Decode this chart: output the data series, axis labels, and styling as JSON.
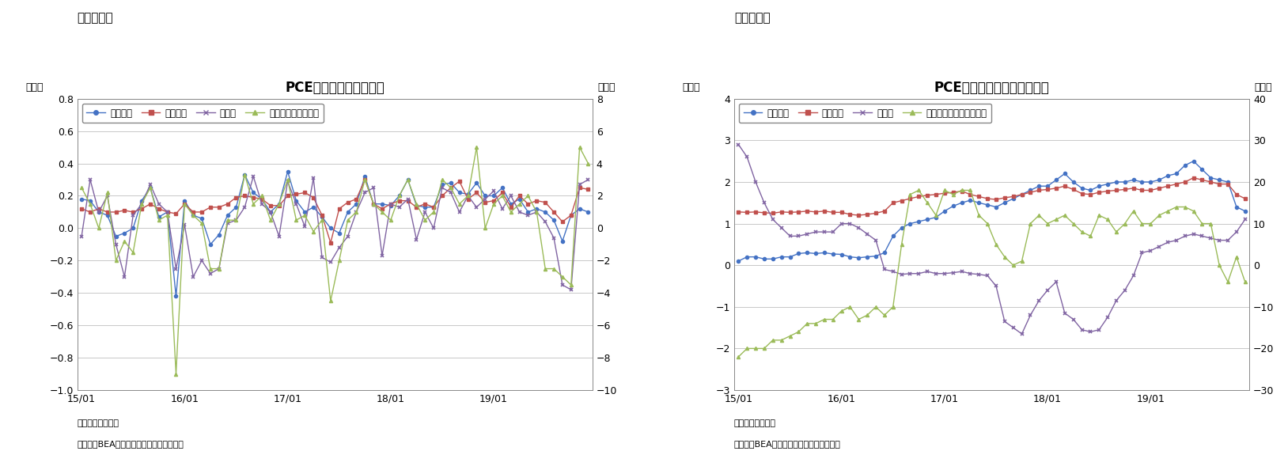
{
  "fig6": {
    "title": "PCE価格指数（前月比）",
    "suptitle": "（図表６）",
    "ylabel_left": "（％）",
    "ylabel_right": "（％）",
    "ylim_left": [
      -1.0,
      0.8
    ],
    "ylim_right": [
      -10,
      8
    ],
    "yticks_left": [
      -1.0,
      -0.8,
      -0.6,
      -0.4,
      -0.2,
      0.0,
      0.2,
      0.4,
      0.6,
      0.8
    ],
    "yticks_right": [
      -10,
      -8,
      -6,
      -4,
      -2,
      0,
      2,
      4,
      6,
      8
    ],
    "xtick_labels": [
      "15/01",
      "16/01",
      "17/01",
      "18/01",
      "19/01"
    ],
    "note1": "（注）季節調整済",
    "note2": "（資料）BEAよりニッセイ基礎研究所作成",
    "legend": [
      "総合指数",
      "コア指数",
      "食料品",
      "エネルギー（右軸）"
    ],
    "colors": [
      "#4472c4",
      "#c0504d",
      "#8064a2",
      "#9bbb59"
    ],
    "markers": [
      "o",
      "s",
      "x",
      "^"
    ],
    "total": [
      0.18,
      0.17,
      0.1,
      0.08,
      -0.05,
      -0.03,
      0.0,
      0.17,
      0.25,
      0.07,
      0.1,
      -0.42,
      0.17,
      0.08,
      0.06,
      -0.1,
      -0.04,
      0.08,
      0.13,
      0.33,
      0.22,
      0.18,
      0.1,
      0.15,
      0.35,
      0.17,
      0.1,
      0.13,
      0.07,
      0.0,
      -0.03,
      0.1,
      0.15,
      0.32,
      0.15,
      0.15,
      0.14,
      0.2,
      0.3,
      0.14,
      0.13,
      0.13,
      0.27,
      0.28,
      0.22,
      0.21,
      0.28,
      0.2,
      0.2,
      0.25,
      0.15,
      0.18,
      0.1,
      0.12,
      0.1,
      0.05,
      -0.08,
      0.08,
      0.12,
      0.1
    ],
    "core": [
      0.12,
      0.1,
      0.12,
      0.1,
      0.1,
      0.11,
      0.1,
      0.12,
      0.15,
      0.12,
      0.1,
      0.09,
      0.15,
      0.1,
      0.1,
      0.13,
      0.13,
      0.15,
      0.19,
      0.2,
      0.19,
      0.18,
      0.14,
      0.14,
      0.2,
      0.21,
      0.22,
      0.19,
      0.08,
      -0.09,
      0.12,
      0.16,
      0.18,
      0.3,
      0.15,
      0.12,
      0.15,
      0.17,
      0.17,
      0.13,
      0.15,
      0.13,
      0.2,
      0.25,
      0.29,
      0.18,
      0.22,
      0.16,
      0.17,
      0.22,
      0.13,
      0.2,
      0.15,
      0.17,
      0.16,
      0.1,
      0.04,
      0.08,
      0.25,
      0.24
    ],
    "food": [
      -0.05,
      0.3,
      0.1,
      0.2,
      -0.1,
      -0.3,
      0.08,
      0.15,
      0.27,
      0.15,
      0.1,
      -0.25,
      0.02,
      -0.3,
      -0.2,
      -0.28,
      -0.25,
      0.03,
      0.05,
      0.13,
      0.32,
      0.15,
      0.1,
      -0.05,
      0.29,
      0.15,
      0.01,
      0.31,
      -0.18,
      -0.21,
      -0.12,
      -0.05,
      0.1,
      0.22,
      0.25,
      -0.17,
      0.15,
      0.13,
      0.18,
      -0.07,
      0.1,
      0.0,
      0.25,
      0.22,
      0.1,
      0.2,
      0.13,
      0.18,
      0.23,
      0.12,
      0.2,
      0.1,
      0.08,
      0.1,
      0.04,
      -0.06,
      -0.35,
      -0.38,
      0.27,
      0.3
    ],
    "energy": [
      2.5,
      1.5,
      0.0,
      2.2,
      -2.0,
      -0.8,
      -1.5,
      1.5,
      2.5,
      0.5,
      0.8,
      -9.0,
      1.5,
      0.8,
      0.3,
      -2.5,
      -2.5,
      0.5,
      0.5,
      3.3,
      1.5,
      2.0,
      0.5,
      1.5,
      3.0,
      0.5,
      0.8,
      -0.2,
      0.5,
      -4.5,
      -2.0,
      0.5,
      1.0,
      3.0,
      1.5,
      1.0,
      0.5,
      2.0,
      3.0,
      1.5,
      0.5,
      1.0,
      3.0,
      2.5,
      1.5,
      2.0,
      5.0,
      0.0,
      1.5,
      2.0,
      1.0,
      1.5,
      2.0,
      1.0,
      -2.5,
      -2.5,
      -3.0,
      -3.5,
      5.0,
      4.0
    ]
  },
  "fig7": {
    "title": "PCE価格指数（前年同月比）",
    "suptitle": "（図表７）",
    "ylabel_left": "（％）",
    "ylabel_right": "（％）",
    "ylim_left": [
      -3.0,
      4.0
    ],
    "ylim_right": [
      -30,
      40
    ],
    "yticks_left": [
      -3,
      -2,
      -1,
      0,
      1,
      2,
      3,
      4
    ],
    "yticks_right": [
      -30,
      -20,
      -10,
      0,
      10,
      20,
      30,
      40
    ],
    "xtick_labels": [
      "15/01",
      "16/01",
      "17/01",
      "18/01",
      "19/01"
    ],
    "note1": "（注）季節調整済",
    "note2": "（資料）BEAよりニッセイ基礎研究所作成",
    "legend": [
      "総合指数",
      "コア指数",
      "食料品",
      "エネルギー関連（右軸）"
    ],
    "colors": [
      "#4472c4",
      "#c0504d",
      "#8064a2",
      "#9bbb59"
    ],
    "markers": [
      "o",
      "s",
      "x",
      "^"
    ],
    "total": [
      0.1,
      0.2,
      0.2,
      0.15,
      0.15,
      0.2,
      0.2,
      0.28,
      0.3,
      0.28,
      0.3,
      0.27,
      0.26,
      0.2,
      0.18,
      0.2,
      0.22,
      0.3,
      0.7,
      0.9,
      1.0,
      1.05,
      1.1,
      1.15,
      1.3,
      1.42,
      1.5,
      1.56,
      1.5,
      1.45,
      1.4,
      1.5,
      1.6,
      1.7,
      1.8,
      1.9,
      1.9,
      2.05,
      2.2,
      2.0,
      1.85,
      1.8,
      1.9,
      1.95,
      2.0,
      2.0,
      2.05,
      2.0,
      2.0,
      2.05,
      2.15,
      2.2,
      2.4,
      2.5,
      2.3,
      2.1,
      2.05,
      2.0,
      1.4,
      1.3
    ],
    "core": [
      1.28,
      1.27,
      1.28,
      1.26,
      1.25,
      1.28,
      1.27,
      1.28,
      1.3,
      1.28,
      1.3,
      1.27,
      1.27,
      1.22,
      1.2,
      1.22,
      1.25,
      1.3,
      1.5,
      1.55,
      1.6,
      1.65,
      1.68,
      1.7,
      1.73,
      1.75,
      1.78,
      1.7,
      1.65,
      1.6,
      1.58,
      1.62,
      1.65,
      1.7,
      1.75,
      1.8,
      1.82,
      1.85,
      1.9,
      1.82,
      1.72,
      1.7,
      1.75,
      1.78,
      1.8,
      1.82,
      1.85,
      1.8,
      1.8,
      1.85,
      1.9,
      1.95,
      2.0,
      2.1,
      2.05,
      2.0,
      1.95,
      1.95,
      1.7,
      1.6
    ],
    "food": [
      2.9,
      2.6,
      2.0,
      1.5,
      1.1,
      0.9,
      0.7,
      0.7,
      0.75,
      0.8,
      0.8,
      0.8,
      1.0,
      1.0,
      0.9,
      0.75,
      0.6,
      -0.1,
      -0.15,
      -0.22,
      -0.2,
      -0.2,
      -0.15,
      -0.2,
      -0.2,
      -0.18,
      -0.15,
      -0.2,
      -0.22,
      -0.25,
      -0.5,
      -1.35,
      -1.5,
      -1.65,
      -1.2,
      -0.85,
      -0.6,
      -0.4,
      -1.15,
      -1.3,
      -1.55,
      -1.6,
      -1.55,
      -1.25,
      -0.85,
      -0.6,
      -0.25,
      0.3,
      0.35,
      0.45,
      0.55,
      0.6,
      0.7,
      0.75,
      0.7,
      0.65,
      0.6,
      0.6,
      0.8,
      1.1
    ],
    "energy": [
      -22,
      -20,
      -20,
      -20,
      -18,
      -18,
      -17,
      -16,
      -14,
      -14,
      -13,
      -13,
      -11,
      -10,
      -13,
      -12,
      -10,
      -12,
      -10,
      5,
      17,
      18,
      15,
      12,
      18,
      17,
      18,
      18,
      12,
      10,
      5,
      2,
      0,
      1,
      10,
      12,
      10,
      11,
      12,
      10,
      8,
      7,
      12,
      11,
      8,
      10,
      13,
      10,
      10,
      12,
      13,
      14,
      14,
      13,
      10,
      10,
      0,
      -4,
      2,
      -4
    ]
  },
  "bg_color": "#ffffff",
  "grid_color": "#bfbfbf",
  "n_points": 60
}
